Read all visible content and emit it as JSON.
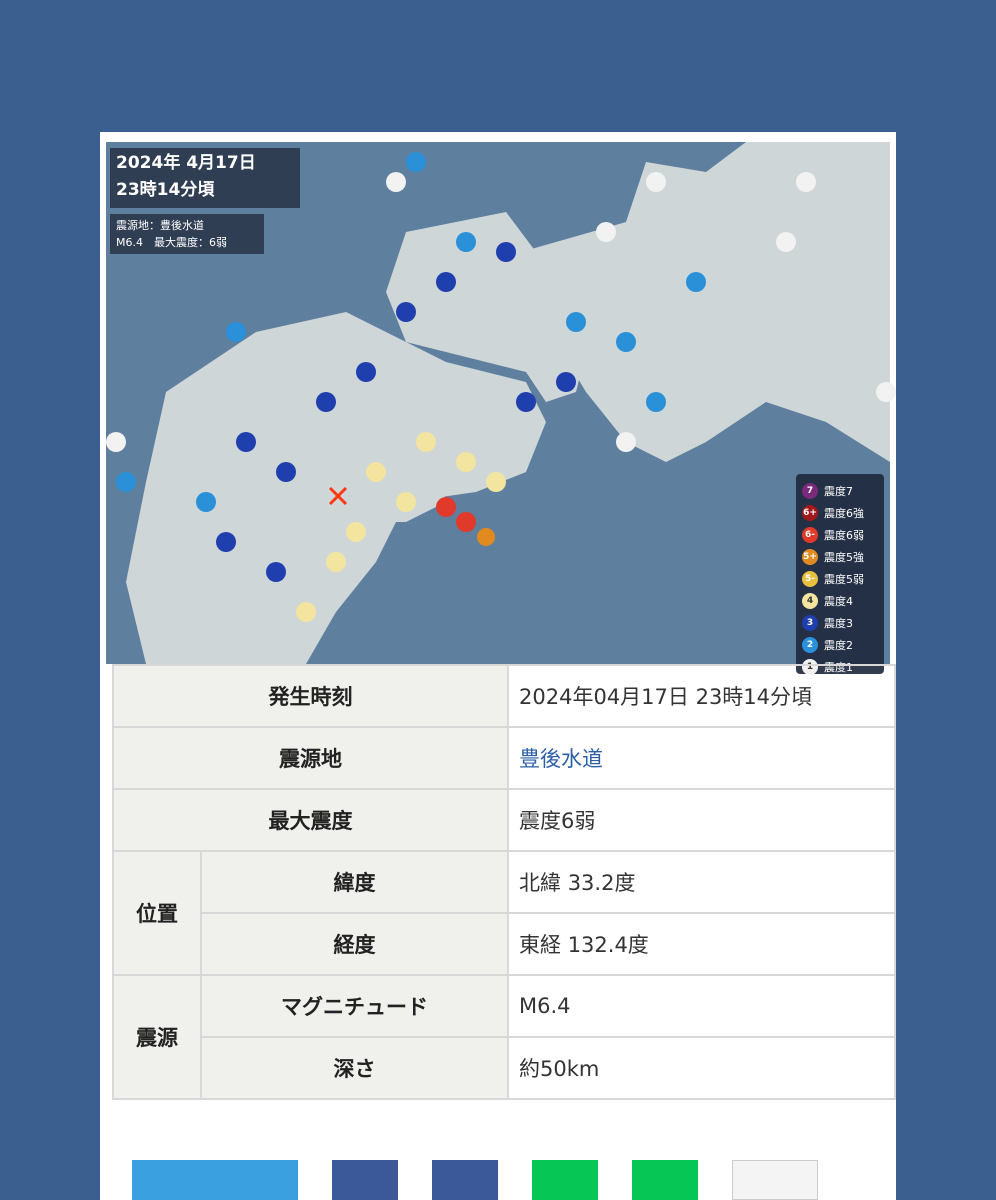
{
  "map": {
    "datetime_line1": "2024年  4月17日",
    "datetime_line2": "23時14分頃",
    "epicenter_line": "震源地：豊後水道",
    "magnitude_line": "M6.4　最大震度：6弱",
    "legend": [
      {
        "badge": "7",
        "label": "震度7",
        "color": "#7a2a7a"
      },
      {
        "badge": "6+",
        "label": "震度6強",
        "color": "#a01a1a"
      },
      {
        "badge": "6-",
        "label": "震度6弱",
        "color": "#e03a2a"
      },
      {
        "badge": "5+",
        "label": "震度5強",
        "color": "#e08a20"
      },
      {
        "badge": "5-",
        "label": "震度5弱",
        "color": "#e8c040"
      },
      {
        "badge": "4",
        "label": "震度4",
        "color": "#f3e4a0"
      },
      {
        "badge": "3",
        "label": "震度3",
        "color": "#1f3fae"
      },
      {
        "badge": "2",
        "label": "震度2",
        "color": "#2a90d8"
      },
      {
        "badge": "1",
        "label": "震度1",
        "color": "#f2f2f2"
      }
    ]
  },
  "table": {
    "time_label": "発生時刻",
    "time_value": "2024年04月17日 23時14分頃",
    "epicenter_label": "震源地",
    "epicenter_value": "豊後水道",
    "max_intensity_label": "最大震度",
    "max_intensity_value": "震度6弱",
    "position_label": "位置",
    "latitude_label": "緯度",
    "latitude_value": "北緯 33.2度",
    "longitude_label": "経度",
    "longitude_value": "東経 132.4度",
    "source_label": "震源",
    "magnitude_label": "マグニチュード",
    "magnitude_value": "M6.4",
    "depth_label": "深さ",
    "depth_value": "約50km"
  },
  "colors": {
    "background": "#3b5f8f",
    "sea": "#5f7f9f",
    "land": "#cfd6d8",
    "link": "#2a5fa8",
    "share_light_blue": "#3aa0e0",
    "share_dark_blue": "#3b5998",
    "share_green": "#06c755"
  }
}
